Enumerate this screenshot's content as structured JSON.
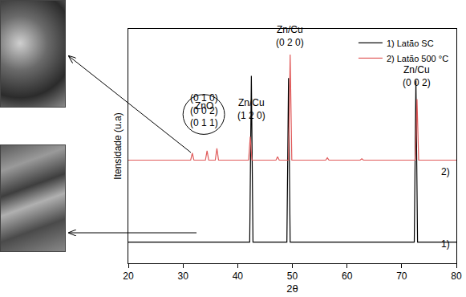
{
  "chart_data": {
    "type": "line",
    "x_label": "2θ",
    "y_label": "Itensidade (u.a)",
    "xlim": [
      20,
      80
    ],
    "xticks": [
      20,
      30,
      40,
      50,
      60,
      70,
      80
    ],
    "ylim": [
      0,
      100
    ],
    "yticks": [],
    "tick_labels": "x",
    "grid": false,
    "legend": "upper right",
    "series": [
      {
        "name": "1) Latão SC",
        "color": "#000000",
        "x": [
          20,
          42.2,
          42.5,
          42.8,
          49.0,
          49.3,
          49.6,
          72.3,
          72.6,
          72.9,
          80
        ],
        "values": [
          9,
          9,
          80,
          9,
          9,
          79,
          9,
          9,
          78,
          9,
          9
        ]
      },
      {
        "name": "2) Latão 500 °C",
        "color": "#e05a5a",
        "x": [
          20,
          31.4,
          31.7,
          32.0,
          34.1,
          34.4,
          34.7,
          35.9,
          36.2,
          36.5,
          42.0,
          42.3,
          42.6,
          47.0,
          47.3,
          47.6,
          49.3,
          49.6,
          49.9,
          56.1,
          56.4,
          56.7,
          62.4,
          62.7,
          63.0,
          72.5,
          72.8,
          73.1,
          80
        ],
        "values": [
          44,
          44,
          47,
          44,
          44,
          48,
          44,
          44,
          49,
          44,
          44,
          54,
          44,
          44,
          45.5,
          44,
          44,
          89,
          44,
          44,
          45,
          44,
          44,
          44.6,
          44,
          44,
          70,
          44,
          44
        ]
      }
    ],
    "annotations": [
      {
        "lines": [
          "ZnO"
        ],
        "x": 33.8,
        "y": 64
      },
      {
        "lines": [
          "(0 1 0)",
          "(0 0 2)",
          "(0 1 1)"
        ],
        "x": 33.8,
        "y": 57
      },
      {
        "lines": [
          "Zn/Cu",
          "(1 2 0)"
        ],
        "x": 42.5,
        "y": 60
      },
      {
        "lines": [
          "Zn/Cu",
          "(0 2 0)"
        ],
        "x": 49.6,
        "y": 91
      },
      {
        "lines": [
          "Zn/Cu",
          "(0 0 2)"
        ],
        "x": 72.8,
        "y": 74
      },
      {
        "lines": [
          "2)"
        ],
        "x": 78,
        "y": 36
      },
      {
        "lines": [
          "1)"
        ],
        "x": 78,
        "y": 5
      }
    ]
  }
}
